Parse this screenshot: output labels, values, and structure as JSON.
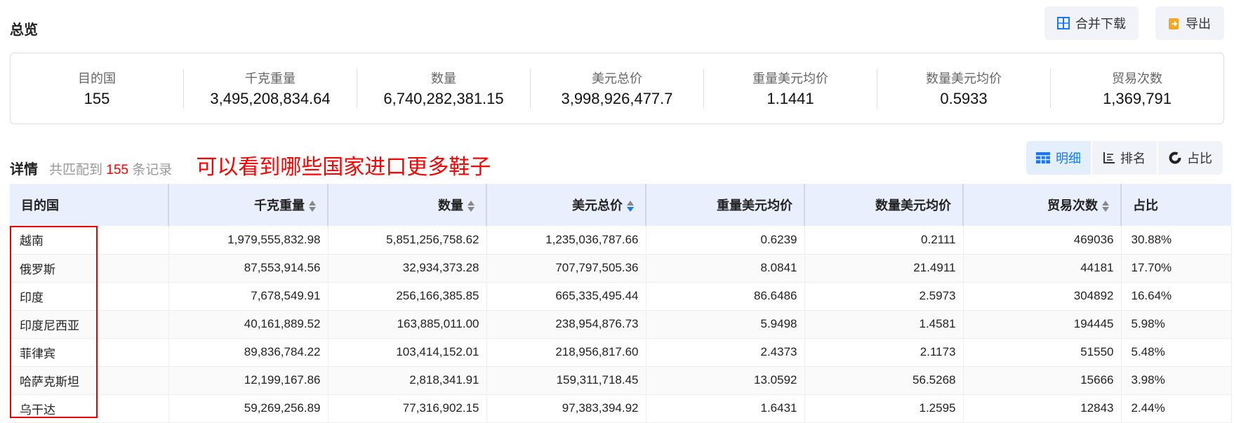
{
  "title": "总览",
  "toolbar": {
    "merge_download": "合并下载",
    "export": "导出"
  },
  "summary": [
    {
      "label": "目的国",
      "value": "155"
    },
    {
      "label": "千克重量",
      "value": "3,495,208,834.64"
    },
    {
      "label": "数量",
      "value": "6,740,282,381.15"
    },
    {
      "label": "美元总价",
      "value": "3,998,926,477.7"
    },
    {
      "label": "重量美元均价",
      "value": "1.1441"
    },
    {
      "label": "数量美元均价",
      "value": "0.5933"
    },
    {
      "label": "贸易次数",
      "value": "1,369,791"
    }
  ],
  "details": {
    "heading": "详情",
    "prefix": "共匹配到",
    "count": "155",
    "suffix": "条记录",
    "annotation": "可以看到哪些国家进口更多鞋子"
  },
  "views": {
    "detail": "明细",
    "rank": "排名",
    "ratio": "占比",
    "active": "detail"
  },
  "colors": {
    "accent": "#1677ff",
    "highlight": "#ff0000"
  },
  "table": {
    "columns": [
      "目的国",
      "千克重量",
      "数量",
      "美元总价",
      "重量美元均价",
      "数量美元均价",
      "贸易次数",
      "占比"
    ],
    "sort": {
      "sortable": [
        1,
        2,
        3,
        6
      ],
      "active_column": 3,
      "direction": "descending"
    },
    "rows": [
      [
        "越南",
        "1,979,555,832.98",
        "5,851,256,758.62",
        "1,235,036,787.66",
        "0.6239",
        "0.2111",
        "469036",
        "30.88%"
      ],
      [
        "俄罗斯",
        "87,553,914.56",
        "32,934,373.28",
        "707,797,505.36",
        "8.0841",
        "21.4911",
        "44181",
        "17.70%"
      ],
      [
        "印度",
        "7,678,549.91",
        "256,166,385.85",
        "665,335,495.44",
        "86.6486",
        "2.5973",
        "304892",
        "16.64%"
      ],
      [
        "印度尼西亚",
        "40,161,889.52",
        "163,885,011.00",
        "238,954,876.73",
        "5.9498",
        "1.4581",
        "194445",
        "5.98%"
      ],
      [
        "菲律宾",
        "89,836,784.22",
        "103,414,152.01",
        "218,956,817.60",
        "2.4373",
        "2.1173",
        "51550",
        "5.48%"
      ],
      [
        "哈萨克斯坦",
        "12,199,167.86",
        "2,818,341.91",
        "159,311,718.45",
        "13.0592",
        "56.5268",
        "15666",
        "3.98%"
      ],
      [
        "乌干达",
        "59,269,256.89",
        "77,316,902.15",
        "97,383,394.92",
        "1.6431",
        "1.2595",
        "12843",
        "2.44%"
      ]
    ]
  }
}
